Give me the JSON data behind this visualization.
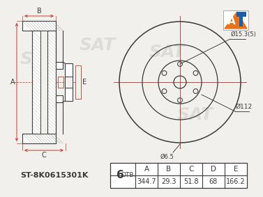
{
  "bg_color": "#f2f0ec",
  "line_color": "#3a3a3a",
  "dim_color": "#c0392b",
  "watermark_color": "#c8c5be",
  "part_number": "ST-8K0615301K",
  "bolt_count_label": "6 ОТВ.",
  "table_headers": [
    "A",
    "B",
    "C",
    "D",
    "E"
  ],
  "table_values": [
    "344.7",
    "29.3",
    "51.8",
    "68",
    "166.2"
  ],
  "dim_d1": "Ø15.3(5)",
  "dim_d2": "Ø112",
  "dim_d3": "Ø6.5",
  "logo_orange": "#e8721a",
  "logo_blue": "#1a5fa8",
  "num_bolts": 6
}
